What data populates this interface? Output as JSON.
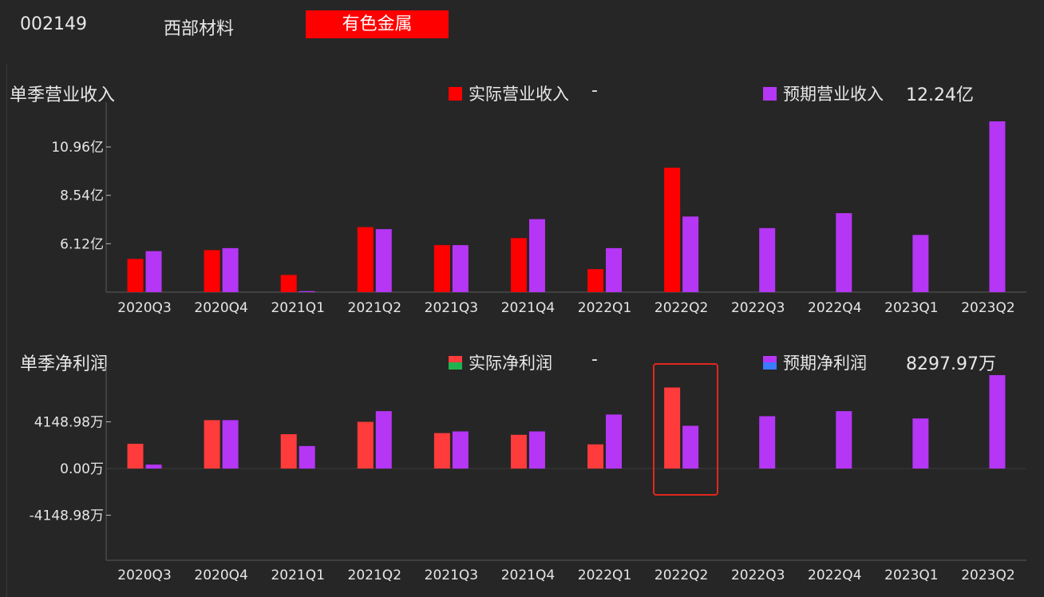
{
  "header": {
    "code": "002149",
    "name": "西部材料",
    "sector": "有色金属"
  },
  "colors": {
    "actual_rev": "#ff0000",
    "forecast": "#b536f5",
    "actual_profit": "#ff3b3b",
    "profit_neg": "#1fb34f",
    "forecast_neg": "#3a7bff",
    "grid": "#555555"
  },
  "revenue": {
    "title": "单季营业收入",
    "legend_actual": "实际营业收入",
    "legend_actual_value": "-",
    "legend_forecast": "预期营业收入",
    "legend_forecast_value": "12.24亿"
  },
  "profit": {
    "title": "单季净利润",
    "legend_actual": "实际净利润",
    "legend_actual_value": "-",
    "legend_forecast": "预期净利润",
    "legend_forecast_value": "8297.97万"
  },
  "chart_data": [
    {
      "type": "bar",
      "title": "单季营业收入",
      "categories": [
        "2020Q3",
        "2020Q4",
        "2021Q1",
        "2021Q2",
        "2021Q3",
        "2021Q4",
        "2022Q1",
        "2022Q2",
        "2022Q3",
        "2022Q4",
        "2023Q1",
        "2023Q2"
      ],
      "y_ticks": [
        {
          "value": 6.12,
          "label": "6.12亿"
        },
        {
          "value": 8.54,
          "label": "8.54亿"
        },
        {
          "value": 10.96,
          "label": "10.96亿"
        }
      ],
      "ylim": [
        3.7,
        12.8
      ],
      "unit": "亿",
      "series": [
        {
          "name": "实际营业收入",
          "values": [
            5.36,
            5.8,
            4.56,
            6.95,
            6.05,
            6.4,
            4.85,
            9.92,
            null,
            null,
            null,
            null
          ]
        },
        {
          "name": "预期营业收入",
          "values": [
            5.75,
            5.9,
            3.75,
            6.85,
            6.05,
            7.35,
            5.9,
            7.48,
            6.9,
            7.65,
            6.56,
            12.24
          ]
        }
      ]
    },
    {
      "type": "bar",
      "title": "单季净利润",
      "categories": [
        "2020Q3",
        "2020Q4",
        "2021Q1",
        "2021Q2",
        "2021Q3",
        "2021Q4",
        "2022Q1",
        "2022Q2",
        "2022Q3",
        "2022Q4",
        "2023Q1",
        "2023Q2"
      ],
      "y_ticks": [
        {
          "value": -4148.98,
          "label": "-4148.98万"
        },
        {
          "value": 0,
          "label": "0.00万"
        },
        {
          "value": 4148.98,
          "label": "4148.98万"
        }
      ],
      "ylim": [
        -8150,
        8300
      ],
      "unit": "万",
      "series": [
        {
          "name": "实际净利润",
          "values": [
            2200,
            4300,
            3050,
            4150,
            3150,
            3000,
            2150,
            7200,
            null,
            null,
            null,
            null
          ]
        },
        {
          "name": "预期净利润",
          "values": [
            350,
            4300,
            2000,
            5100,
            3300,
            3300,
            4800,
            3800,
            4650,
            5100,
            4450,
            8297.97
          ]
        }
      ]
    }
  ]
}
